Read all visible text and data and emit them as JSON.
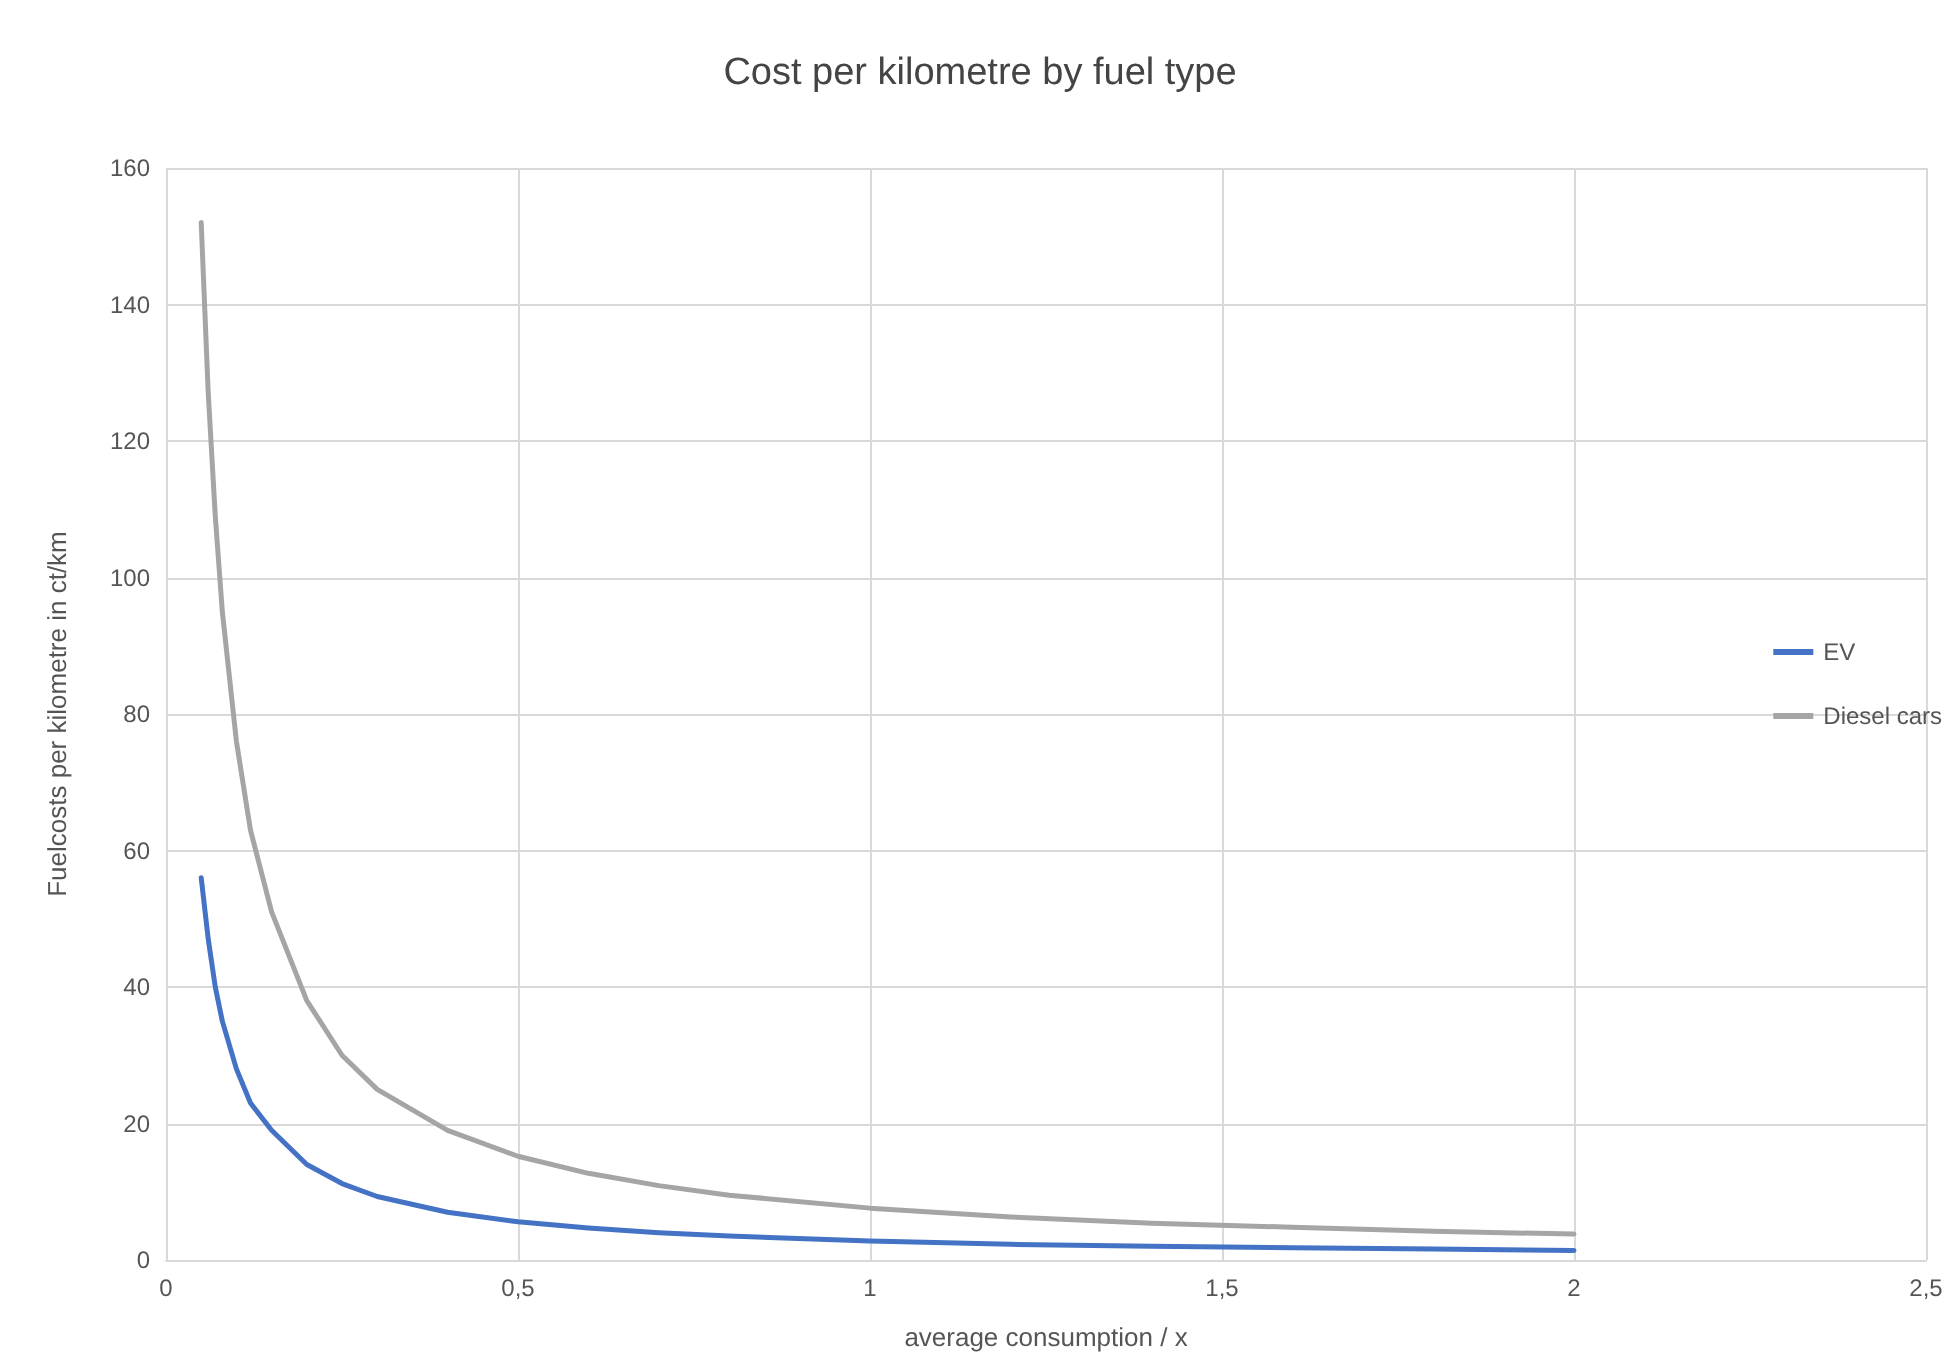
{
  "chart_data": {
    "type": "line",
    "title": "Cost per kilometre by fuel type",
    "xlabel": "average consumption / x",
    "ylabel": "Fuelcosts per kilometre in ct/km",
    "x": [
      0.05,
      0.06,
      0.07,
      0.08,
      0.1,
      0.12,
      0.15,
      0.2,
      0.25,
      0.3,
      0.4,
      0.5,
      0.6,
      0.7,
      0.8,
      1,
      1.2,
      1.4,
      1.6,
      1.8,
      2
    ],
    "series": [
      {
        "name": "EV",
        "color": "#4472c4",
        "values": [
          56,
          47,
          40,
          35,
          28,
          23,
          19,
          14,
          11.2,
          9.3,
          7,
          5.6,
          4.7,
          4,
          3.5,
          2.8,
          2.3,
          2,
          1.8,
          1.6,
          1.4
        ]
      },
      {
        "name": "Diesel cars",
        "color": "#a5a5a5",
        "values": [
          152,
          127,
          109,
          95,
          76,
          63,
          51,
          38,
          30,
          25,
          19,
          15.2,
          12.7,
          10.9,
          9.5,
          7.6,
          6.3,
          5.4,
          4.8,
          4.2,
          3.8
        ]
      }
    ],
    "xlim": [
      0,
      2.5
    ],
    "xticks": [
      0,
      {
        "value": 0.5,
        "label": "0,5"
      },
      1,
      {
        "value": 1.5,
        "label": "1,5"
      },
      2,
      {
        "value": 2.5,
        "label": "2,5"
      }
    ],
    "ylim": [
      0,
      160
    ],
    "yticks": [
      0,
      20,
      40,
      60,
      80,
      100,
      120,
      140,
      160
    ],
    "grid": true,
    "legend": "right",
    "marker": "none",
    "line_style": "solid"
  }
}
